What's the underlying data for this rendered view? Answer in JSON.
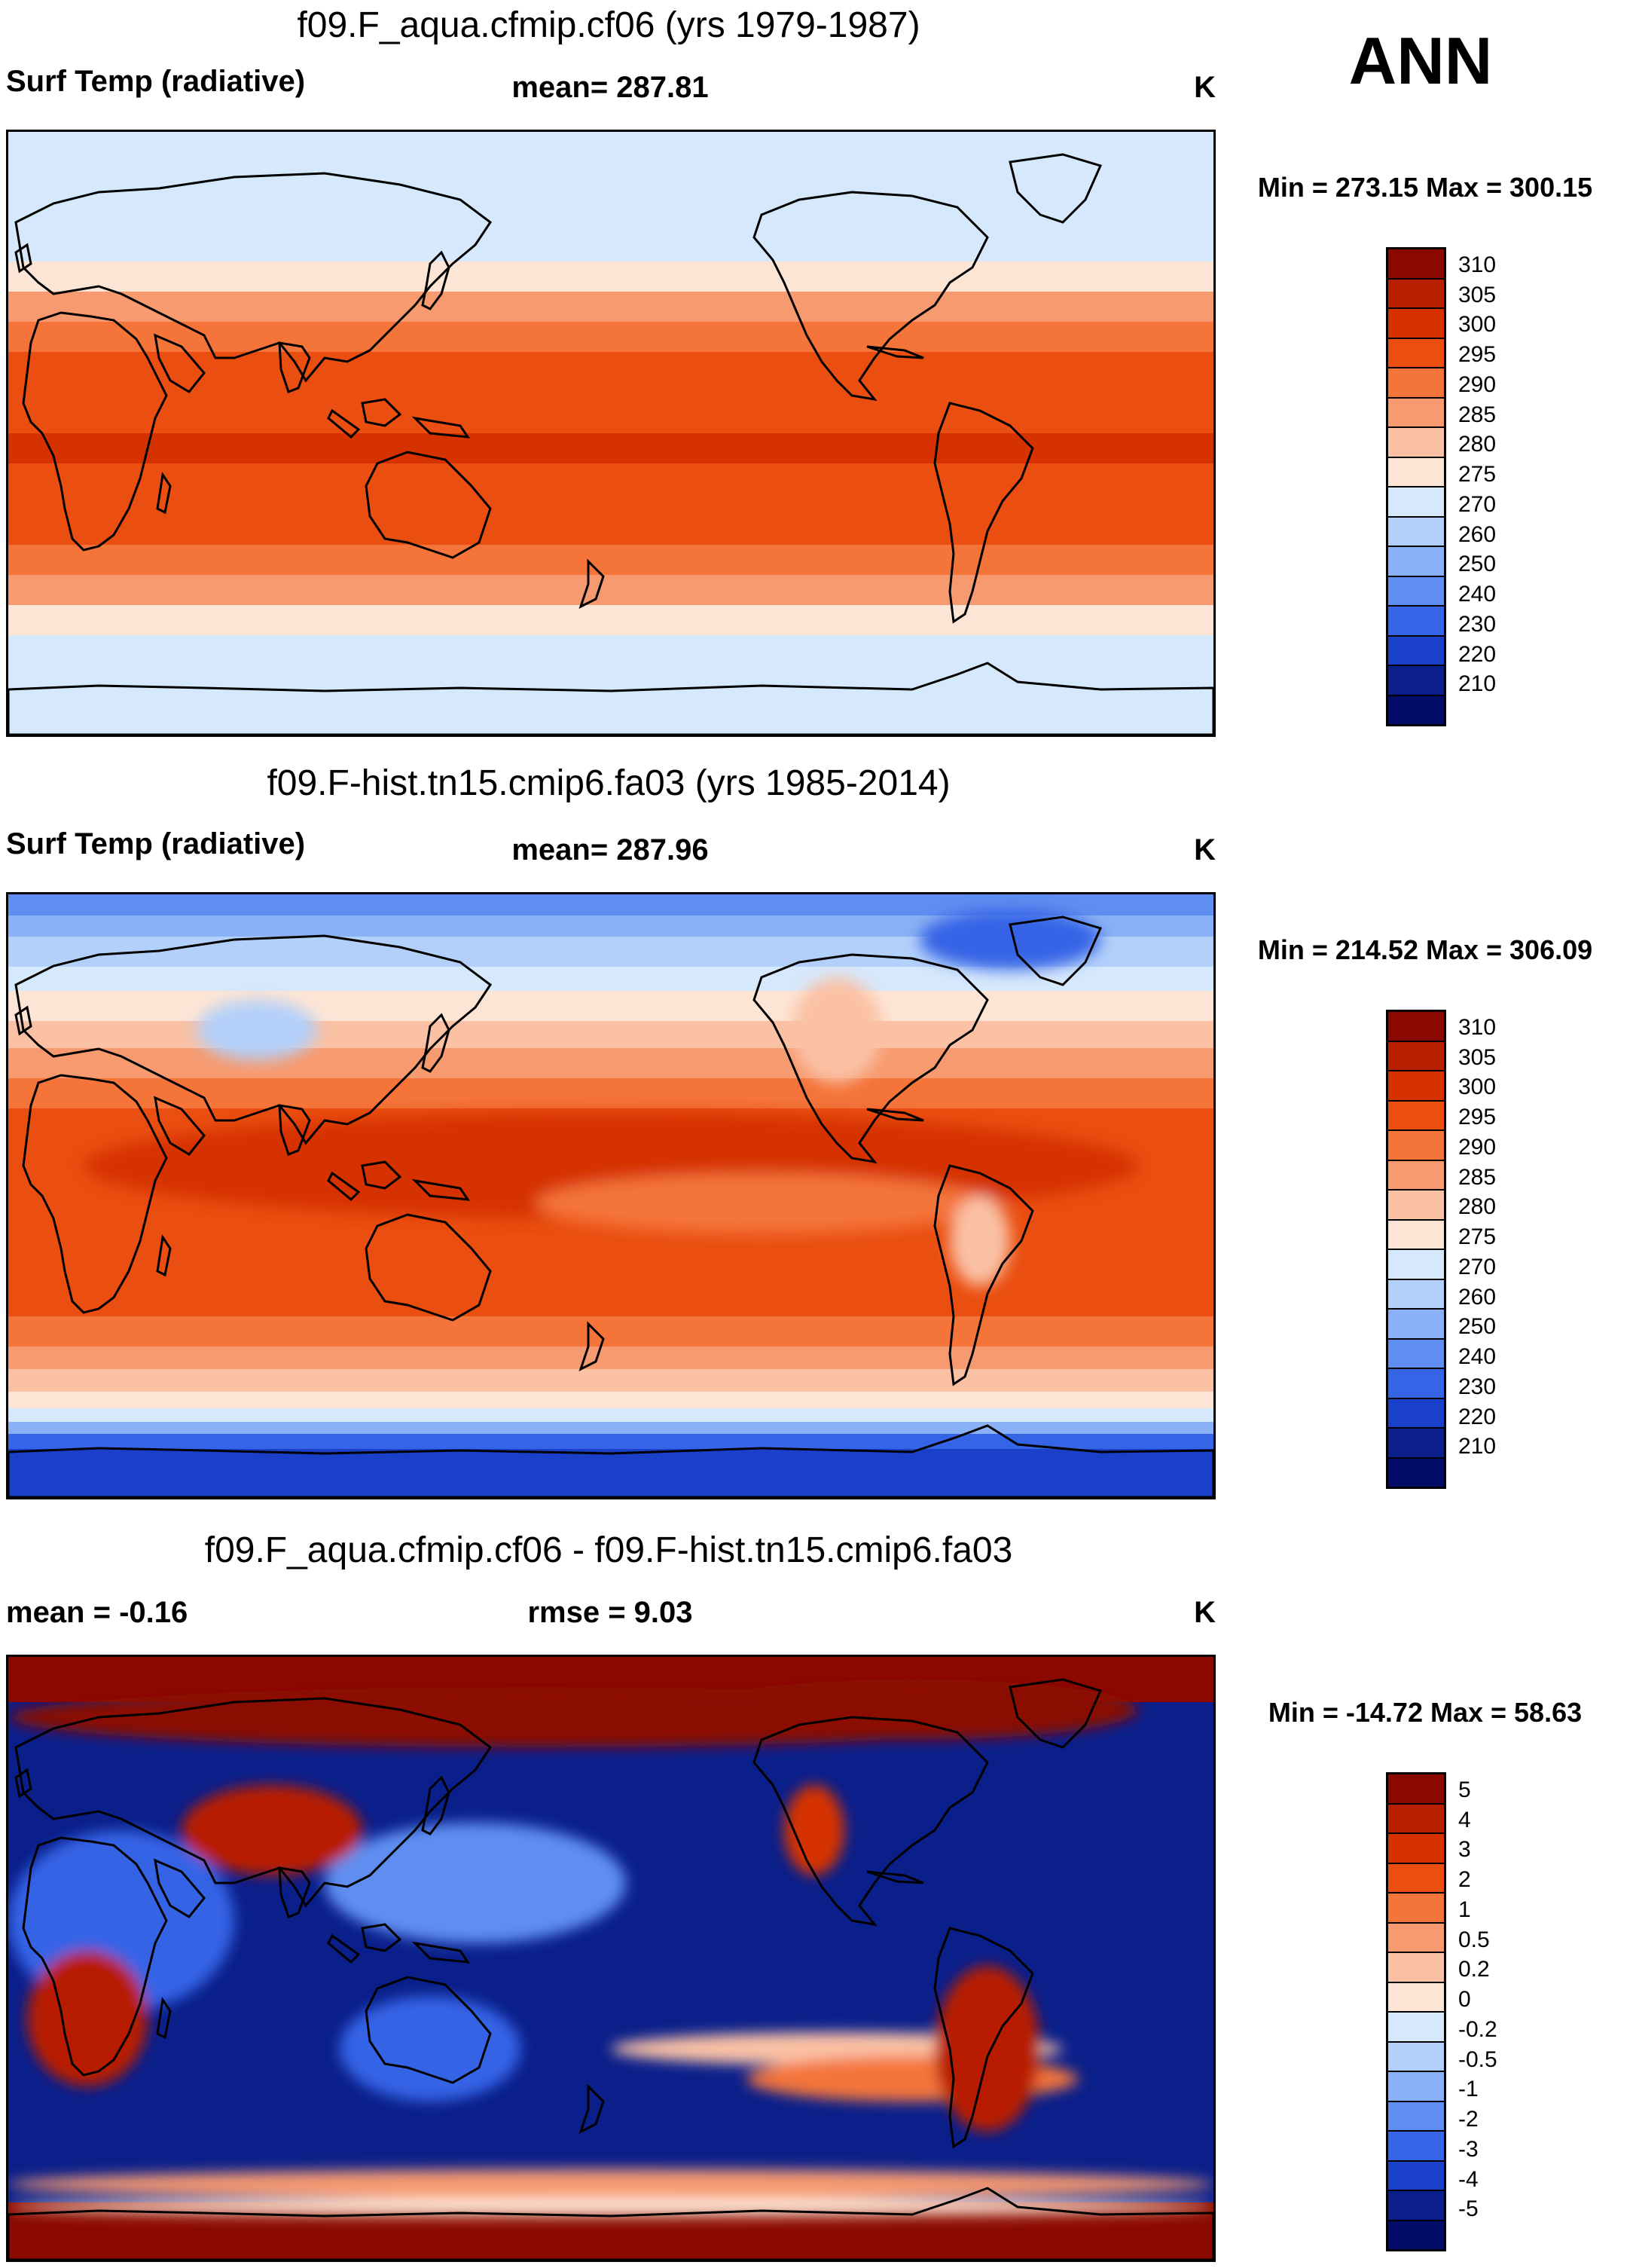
{
  "season": "ANN",
  "units_label": "K",
  "panels": [
    {
      "title": "f09.F_aqua.cfmip.cf06 (yrs 1979-1987)",
      "left_label": "Surf Temp (radiative)",
      "center_label": "mean= 287.81",
      "units": "K",
      "minmax": "Min = 273.15 Max = 300.15",
      "colorbar": {
        "labels": [
          "310",
          "305",
          "300",
          "295",
          "290",
          "285",
          "280",
          "275",
          "270",
          "260",
          "250",
          "240",
          "230",
          "220",
          "210"
        ],
        "colors": [
          "#8b0a00",
          "#b81e00",
          "#d63200",
          "#ea4e10",
          "#f4743a",
          "#f79a6f",
          "#fac1a5",
          "#fde5d5",
          "#d6e8fc",
          "#b3d0fa",
          "#8ab1f5",
          "#5f8ef0",
          "#3564e6",
          "#1a3fc8",
          "#0a1f8a",
          "#040c6a"
        ]
      },
      "map_type": "aqua"
    },
    {
      "title": "f09.F-hist.tn15.cmip6.fa03 (yrs 1985-2014)",
      "left_label": "Surf Temp (radiative)",
      "center_label": "mean= 287.96",
      "units": "K",
      "minmax": "Min = 214.52 Max = 306.09",
      "colorbar": {
        "labels": [
          "310",
          "305",
          "300",
          "295",
          "290",
          "285",
          "280",
          "275",
          "270",
          "260",
          "250",
          "240",
          "230",
          "220",
          "210"
        ],
        "colors": [
          "#8b0a00",
          "#b81e00",
          "#d63200",
          "#ea4e10",
          "#f4743a",
          "#f79a6f",
          "#fac1a5",
          "#fde5d5",
          "#d6e8fc",
          "#b3d0fa",
          "#8ab1f5",
          "#5f8ef0",
          "#3564e6",
          "#1a3fc8",
          "#0a1f8a",
          "#040c6a"
        ]
      },
      "map_type": "hist"
    },
    {
      "title": "f09.F_aqua.cfmip.cf06 - f09.F-hist.tn15.cmip6.fa03",
      "left_label": "mean =  -0.16",
      "center_label": "rmse =   9.03",
      "units": "K",
      "minmax": "Min = -14.72 Max =  58.63",
      "colorbar": {
        "labels": [
          "5",
          "4",
          "3",
          "2",
          "1",
          "0.5",
          "0.2",
          "0",
          "-0.2",
          "-0.5",
          "-1",
          "-2",
          "-3",
          "-4",
          "-5"
        ],
        "colors": [
          "#8b0a00",
          "#b81e00",
          "#d63200",
          "#ea4e10",
          "#f4743a",
          "#f79a6f",
          "#fac1a5",
          "#fde5d5",
          "#d6e8fc",
          "#b3d0fa",
          "#8ab1f5",
          "#5f8ef0",
          "#3564e6",
          "#1a3fc8",
          "#0a1f8a",
          "#040c6a"
        ]
      },
      "map_type": "diff"
    }
  ]
}
